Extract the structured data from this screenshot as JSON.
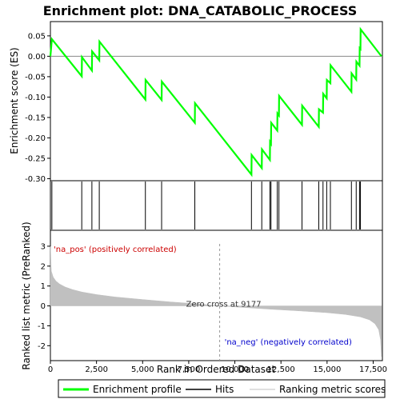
{
  "chart_data": {
    "type": "line",
    "title": "Enrichment plot: DNA_CATABOLIC_PROCESS",
    "top_panel": {
      "ylabel": "Enrichment score (ES)",
      "ylim": [
        -0.305,
        0.085
      ],
      "yticks": [
        0.05,
        0.0,
        -0.05,
        -0.1,
        -0.15,
        -0.2,
        -0.25,
        -0.3
      ],
      "ytick_labels": [
        "0.05",
        "0.00",
        "-0.05",
        "-0.10",
        "-0.15",
        "-0.20",
        "-0.25",
        "-0.30"
      ],
      "series": [
        {
          "name": "Enrichment profile",
          "color": "#00ff00",
          "x": [
            0,
            80,
            1700,
            1710,
            2250,
            2260,
            2650,
            2660,
            5150,
            5160,
            6030,
            6040,
            7830,
            7840,
            10900,
            10910,
            11460,
            11470,
            11900,
            11910,
            11960,
            11970,
            12300,
            12310,
            12390,
            12400,
            13640,
            13650,
            14550,
            14560,
            14780,
            14790,
            14980,
            14990,
            15180,
            15190,
            16320,
            16330,
            16580,
            16590,
            16760,
            16770,
            16810,
            16820,
            17950
          ],
          "y": [
            0.0,
            0.042,
            -0.049,
            -0.002,
            -0.035,
            0.012,
            -0.01,
            0.036,
            -0.106,
            -0.058,
            -0.107,
            -0.062,
            -0.163,
            -0.115,
            -0.29,
            -0.242,
            -0.274,
            -0.228,
            -0.254,
            -0.21,
            -0.214,
            -0.163,
            -0.182,
            -0.14,
            -0.145,
            -0.097,
            -0.168,
            -0.121,
            -0.173,
            -0.13,
            -0.138,
            -0.092,
            -0.103,
            -0.058,
            -0.066,
            -0.022,
            -0.087,
            -0.042,
            -0.057,
            -0.013,
            -0.023,
            0.02,
            0.018,
            0.066,
            0.0
          ]
        }
      ]
    },
    "hits": {
      "name": "Hits",
      "color": "#000000",
      "positions": [
        80,
        1700,
        2250,
        2650,
        5150,
        6030,
        7830,
        10900,
        11460,
        11900,
        11960,
        12300,
        12390,
        13640,
        14550,
        14780,
        14980,
        15180,
        16320,
        16580,
        16760,
        16810
      ]
    },
    "bottom_panel": {
      "ylabel": "Ranked list metric (PreRanked)",
      "xlabel": "Rank in Ordered Dataset",
      "ylim": [
        -2.75,
        3.8
      ],
      "yticks": [
        3,
        2,
        1,
        0,
        -1,
        -2
      ],
      "ytick_labels": [
        "3",
        "2",
        "1",
        "0",
        "-1",
        "-2"
      ],
      "xlim": [
        0,
        18000
      ],
      "xticks": [
        0,
        2500,
        5000,
        7500,
        10000,
        12500,
        15000,
        17500
      ],
      "xtick_labels": [
        "0",
        "2,500",
        "5,000",
        "7,500",
        "10,000",
        "12,500",
        "15,000",
        "17,500"
      ],
      "series": [
        {
          "name": "Ranking metric scores",
          "color": "#c0c0c0",
          "x": [
            0,
            50,
            150,
            300,
            500,
            800,
            1200,
            1700,
            2500,
            3500,
            5000,
            6500,
            8000,
            9177,
            10500,
            12000,
            13500,
            15000,
            16000,
            16800,
            17300,
            17600,
            17800,
            17900,
            17950
          ],
          "y": [
            3.0,
            1.75,
            1.45,
            1.25,
            1.1,
            0.95,
            0.82,
            0.7,
            0.57,
            0.45,
            0.32,
            0.2,
            0.1,
            0.0,
            -0.08,
            -0.17,
            -0.25,
            -0.34,
            -0.43,
            -0.55,
            -0.7,
            -0.9,
            -1.2,
            -1.7,
            -2.55
          ]
        }
      ],
      "zero_cross_label": "Zero cross at 9177",
      "zero_cross": 9177,
      "pos_label": "'na_pos' (positively correlated)",
      "neg_label": "'na_neg' (negatively correlated)",
      "pos_label_color": "#cc0000",
      "neg_label_color": "#0000cc"
    },
    "x_total": 17950,
    "colorbar_colors": [
      "#dd0000",
      "#ff3333",
      "#ff5a5a",
      "#ff7a7a",
      "#ff9999",
      "#ffc0e8",
      "#dcd0ff",
      "#b8b0ff",
      "#8070ff",
      "#5a40f0",
      "#3510d0"
    ],
    "legend": {
      "items": [
        {
          "label": "Enrichment profile",
          "color": "#00ff00"
        },
        {
          "label": "Hits",
          "color": "#000000"
        },
        {
          "label": "Ranking metric scores",
          "color": "#c0c0c0"
        }
      ]
    }
  }
}
